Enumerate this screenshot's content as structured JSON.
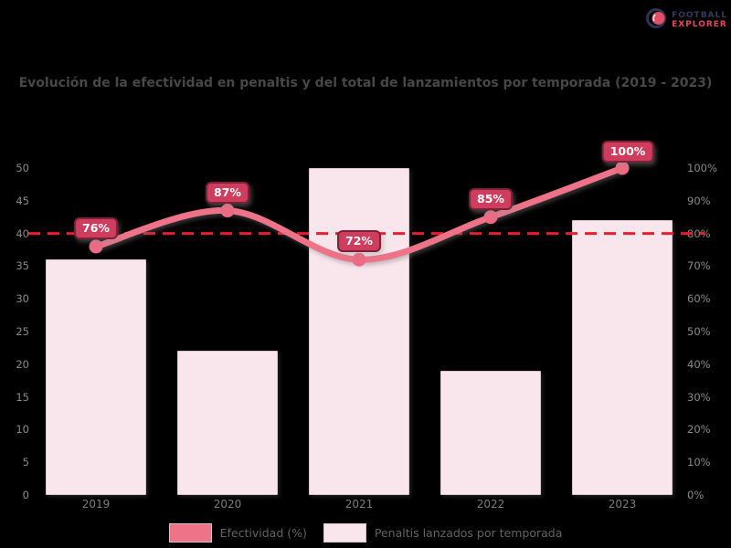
{
  "logo": {
    "icon": "football-icon",
    "line1": "FOOTBALL",
    "line2": "EXPLORER"
  },
  "title": "Evolución de la efectividad en penaltis y del total de lanzamientos por temporada (2019 - 2023)",
  "chart_data": {
    "type": "bar",
    "combo": "bar+line, dual axis",
    "title": "Evolución de la efectividad en penaltis y del total de lanzamientos por temporada (2019 - 2023)",
    "categories": [
      "2019",
      "2020",
      "2021",
      "2022",
      "2023"
    ],
    "series": [
      {
        "name": "Penaltis lanzados por temporada",
        "type": "bar",
        "axis": "left",
        "values": [
          36,
          22,
          50,
          19,
          42
        ],
        "color": "#f8e6ec",
        "border_color": "#d9c4cc"
      },
      {
        "name": "Efectividad (%)",
        "type": "line",
        "axis": "right",
        "values": [
          76,
          87,
          72,
          85,
          100
        ],
        "point_labels": [
          "76%",
          "87%",
          "72%",
          "85%",
          "100%"
        ],
        "color": "#ee7288",
        "marker": "circle"
      }
    ],
    "threshold_line": {
      "value": 80,
      "axis": "right",
      "style": "dashed",
      "color": "#e91e2c"
    },
    "left_axis": {
      "min": 0,
      "max": 50,
      "step": 5,
      "tick_labels": [
        "0",
        "5",
        "10",
        "15",
        "20",
        "25",
        "30",
        "35",
        "40",
        "45",
        "50"
      ]
    },
    "right_axis": {
      "min": 0,
      "max": 100,
      "step": 10,
      "suffix": "%",
      "tick_labels": [
        "0%",
        "10%",
        "20%",
        "30%",
        "40%",
        "50%",
        "60%",
        "70%",
        "80%",
        "90%",
        "100%"
      ]
    },
    "grid": false,
    "legend_position": "bottom",
    "background": "#000000"
  },
  "colors": {
    "background": "#000000",
    "bar_fill": "#f8e6ec",
    "bar_border": "#d9c4cc",
    "line": "#ee7288",
    "marker": "#ec6a83",
    "badge_fill": "#ce3c5e",
    "badge_border": "#7e2138",
    "badge_text": "#ffffff",
    "threshold": "#e91e2c",
    "title_text": "#474747",
    "axis_tick_text": "#8a8a8a",
    "category_text": "#7c7c7c",
    "legend_text": "#646464",
    "logo_navy": "#333a5d",
    "logo_red": "#e04a63"
  }
}
